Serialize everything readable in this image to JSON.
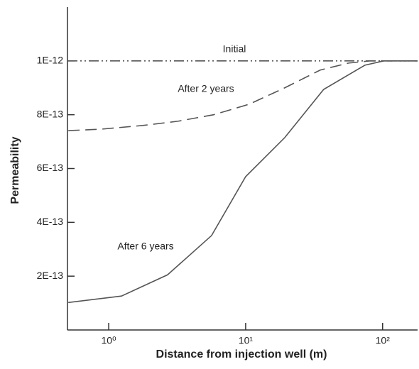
{
  "chart_data": {
    "type": "line",
    "xlabel": "Distance from injection well (m)",
    "ylabel": "Permeability",
    "xscale": "log",
    "xlim": [
      0.5,
      180
    ],
    "ylim": [
      0,
      1.2e-12
    ],
    "xticks": [
      {
        "value": 1,
        "label": "10⁰"
      },
      {
        "value": 10,
        "label": "10¹"
      },
      {
        "value": 100,
        "label": "10²"
      }
    ],
    "yticks": [
      {
        "value": 2e-13,
        "label": "2E-13"
      },
      {
        "value": 4e-13,
        "label": "4E-13"
      },
      {
        "value": 6e-13,
        "label": "6E-13"
      },
      {
        "value": 8e-13,
        "label": "8E-13"
      },
      {
        "value": 1e-12,
        "label": "1E-12"
      }
    ],
    "series": [
      {
        "name": "Initial",
        "color": "#555555",
        "dash": "dash-dot-dot",
        "x": [
          0.5,
          180
        ],
        "values": [
          1e-12,
          1e-12
        ]
      },
      {
        "name": "After 2 years",
        "color": "#555555",
        "dash": "dashed",
        "x": [
          0.507,
          0.867,
          1.77,
          3.22,
          5.84,
          10.6,
          19.3,
          35.0,
          56.4,
          80.7,
          180
        ],
        "values": [
          7.41e-13,
          7.46e-13,
          7.6e-13,
          7.76e-13,
          8e-13,
          8.39e-13,
          9e-13,
          9.66e-13,
          9.92e-13,
          1e-12,
          1e-12
        ]
      },
      {
        "name": "After 6 years",
        "color": "#555555",
        "dash": "solid",
        "x": [
          0.507,
          1.24,
          2.69,
          5.64,
          10,
          19.3,
          37.1,
          74.2,
          102,
          180
        ],
        "values": [
          1.02e-13,
          1.26e-13,
          2.05e-13,
          3.51e-13,
          5.7e-13,
          7.15e-13,
          8.94e-13,
          9.84e-13,
          1e-12,
          1e-12
        ]
      }
    ]
  }
}
